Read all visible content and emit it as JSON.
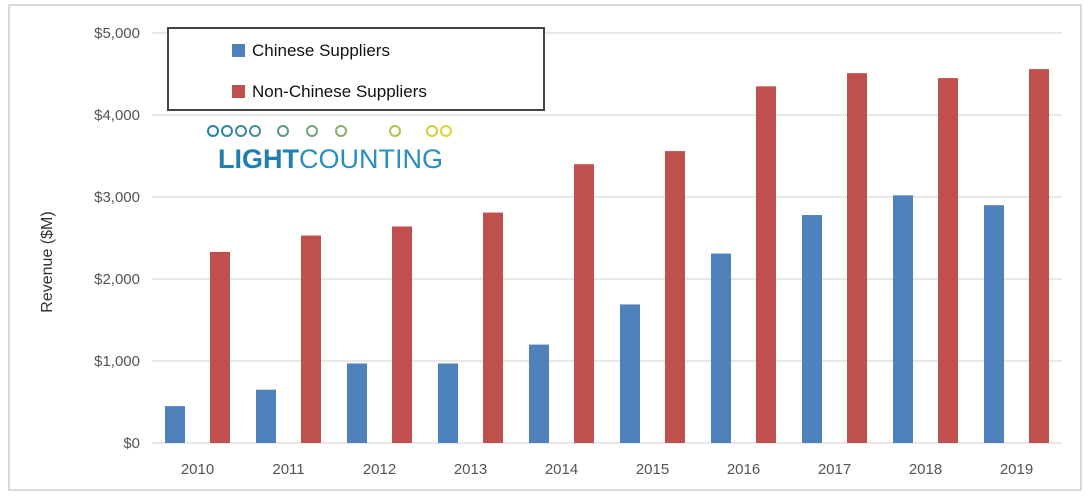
{
  "chart_data": {
    "type": "bar",
    "title": "",
    "xlabel": "",
    "ylabel": "Revenue ($M)",
    "categories": [
      "2010",
      "2011",
      "2012",
      "2013",
      "2014",
      "2015",
      "2016",
      "2017",
      "2018",
      "2019"
    ],
    "series": [
      {
        "name": "Chinese Suppliers",
        "color": "#4f81bd",
        "values": [
          450,
          650,
          970,
          970,
          1200,
          1690,
          2310,
          2780,
          3020,
          2900
        ]
      },
      {
        "name": "Non-Chinese Suppliers",
        "color": "#c0504d",
        "values": [
          2330,
          2530,
          2640,
          2810,
          3400,
          3560,
          4350,
          4510,
          4450,
          4560
        ]
      }
    ],
    "ylim": [
      0,
      5000
    ],
    "yticks": [
      0,
      1000,
      2000,
      3000,
      4000,
      5000
    ],
    "ytick_labels": [
      "$0",
      "$1,000",
      "$2,000",
      "$3,000",
      "$4,000",
      "$5,000"
    ],
    "grid": true,
    "legend_position": "top-left"
  },
  "logo": {
    "text_bold": "LIGHT",
    "text_regular": "COUNTING",
    "colors": {
      "light": "#1f7fb0",
      "counting": "#2a8fc0",
      "beads_start": "#1f7fb0",
      "beads_end": "#e8d82a"
    }
  }
}
